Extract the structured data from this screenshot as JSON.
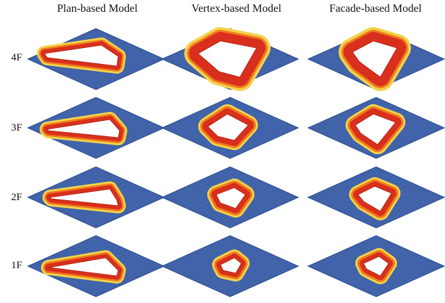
{
  "columns": [
    {
      "label": "Plan-based Model",
      "key": "plan"
    },
    {
      "label": "Vertex-based Model",
      "key": "vertex"
    },
    {
      "label": "Facade-based Model",
      "key": "facade"
    }
  ],
  "rows": [
    {
      "label": "4F"
    },
    {
      "label": "3F"
    },
    {
      "label": "2F"
    },
    {
      "label": "1F"
    }
  ],
  "colors": {
    "plate": "#3f62a8",
    "plate_grid": "#5a7bbd",
    "heat_outer": "#f2d24a",
    "heat_mid": "#f07a1d",
    "heat_inner": "#d8301c",
    "void": "#ffffff"
  }
}
